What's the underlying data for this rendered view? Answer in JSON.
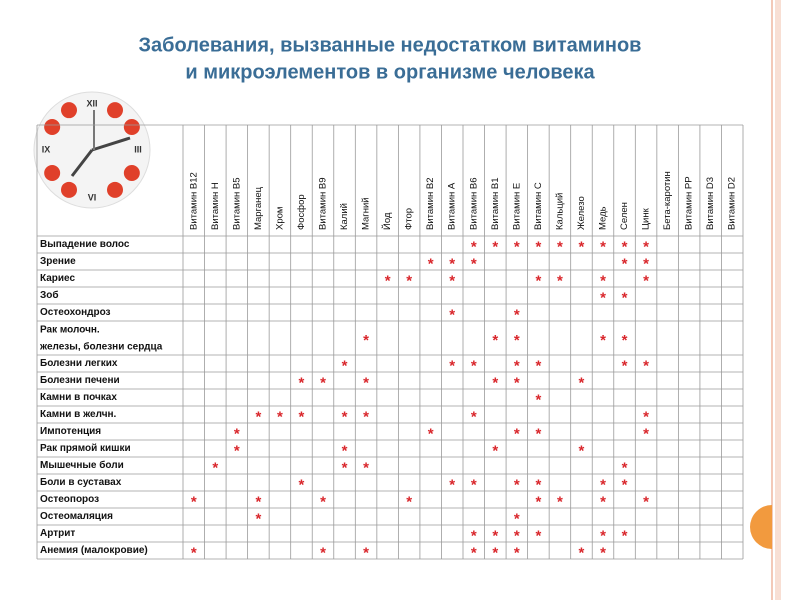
{
  "header": {
    "title_line1": "Заболевания, вызванные недостатком витаминов",
    "title_line2": "и микроэлементов в организме человека"
  },
  "clock": {
    "numerals": [
      "XII",
      "III",
      "VI",
      "IX"
    ]
  },
  "table": {
    "columns": [
      "Витамин В12",
      "Витамин Н",
      "Витамин В5",
      "Марганец",
      "Хром",
      "Фосфор",
      "Витамин В9",
      "Калий",
      "Магний",
      "Йод",
      "Фтор",
      "Витамин В2",
      "Витамин А",
      "Витамин В6",
      "Витамин В1",
      "Витамин Е",
      "Витамин С",
      "Кальций",
      "Железо",
      "Медь",
      "Селен",
      "Цинк",
      "Бета-каротин",
      "Витамин РР",
      "Витамин D3",
      "Витамин D2"
    ],
    "rows": [
      {
        "label": "Выпадение волос",
        "cells": [
          null,
          null,
          null,
          null,
          null,
          null,
          null,
          null,
          null,
          null,
          null,
          null,
          null,
          "*",
          "*",
          "*",
          "*",
          "*",
          "*",
          "*",
          "*",
          "*",
          null,
          null,
          null,
          null
        ]
      },
      {
        "label": "Зрение",
        "cells": [
          null,
          null,
          null,
          null,
          null,
          null,
          null,
          null,
          null,
          null,
          null,
          "*",
          "*",
          "*",
          null,
          null,
          null,
          null,
          null,
          null,
          "*",
          "*",
          null,
          null,
          null,
          null
        ]
      },
      {
        "label": "Кариес",
        "cells": [
          null,
          null,
          null,
          null,
          null,
          null,
          null,
          null,
          null,
          "*",
          "*",
          null,
          "*",
          null,
          null,
          null,
          "*",
          "*",
          null,
          "*",
          null,
          "*",
          null,
          null,
          null,
          null
        ]
      },
      {
        "label": "Зоб",
        "cells": [
          null,
          null,
          null,
          null,
          null,
          null,
          null,
          null,
          null,
          null,
          null,
          null,
          null,
          null,
          null,
          null,
          null,
          null,
          null,
          "*",
          "*",
          null,
          null,
          null,
          null,
          null
        ]
      },
      {
        "label": "Остеохондроз",
        "cells": [
          null,
          null,
          null,
          null,
          null,
          null,
          null,
          null,
          null,
          null,
          null,
          null,
          "*",
          null,
          null,
          "*",
          null,
          null,
          null,
          null,
          null,
          null,
          null,
          null,
          null,
          null
        ]
      },
      {
        "label": "Рак молочн. железы, болезни сердца",
        "cells": [
          null,
          null,
          null,
          null,
          null,
          null,
          null,
          null,
          "*",
          null,
          null,
          null,
          null,
          null,
          "*",
          "*",
          null,
          null,
          null,
          "*",
          "*",
          null,
          null,
          null,
          null,
          null
        ]
      },
      {
        "label": "Болезни легких",
        "cells": [
          null,
          null,
          null,
          null,
          null,
          null,
          null,
          "*",
          null,
          null,
          null,
          null,
          "*",
          "*",
          null,
          "*",
          "*",
          null,
          null,
          null,
          "*",
          "*",
          null,
          null,
          null,
          null
        ]
      },
      {
        "label": "Болезни печени",
        "cells": [
          null,
          null,
          null,
          null,
          null,
          "*",
          "*",
          null,
          "*",
          null,
          null,
          null,
          null,
          null,
          "*",
          "*",
          null,
          null,
          "*",
          null,
          null,
          null,
          null,
          null,
          null,
          null
        ]
      },
      {
        "label": "Камни в почках",
        "cells": [
          null,
          null,
          null,
          null,
          null,
          null,
          null,
          null,
          null,
          null,
          null,
          null,
          null,
          null,
          null,
          null,
          "*",
          null,
          null,
          null,
          null,
          null,
          null,
          null,
          null,
          null
        ]
      },
      {
        "label": "Камни в желчн.",
        "cells": [
          null,
          null,
          null,
          "*",
          "*",
          "*",
          null,
          "*",
          "*",
          null,
          null,
          null,
          null,
          "*",
          null,
          null,
          null,
          null,
          null,
          null,
          null,
          "*",
          null,
          null,
          null,
          null
        ]
      },
      {
        "label": "Импотенция",
        "cells": [
          null,
          null,
          "*",
          null,
          null,
          null,
          null,
          null,
          null,
          null,
          null,
          "*",
          null,
          null,
          null,
          "*",
          "*",
          null,
          null,
          null,
          null,
          "*",
          null,
          null,
          null,
          null
        ]
      },
      {
        "label": "Рак прямой кишки",
        "cells": [
          null,
          null,
          "*",
          null,
          null,
          null,
          null,
          "*",
          null,
          null,
          null,
          null,
          null,
          null,
          "*",
          null,
          null,
          null,
          "*",
          null,
          null,
          null,
          null,
          null,
          null,
          null
        ]
      },
      {
        "label": "Мышечные боли",
        "cells": [
          null,
          "*",
          null,
          null,
          null,
          null,
          null,
          "*",
          "*",
          null,
          null,
          null,
          null,
          null,
          null,
          null,
          null,
          null,
          null,
          null,
          "*",
          null,
          null,
          null,
          null,
          null
        ]
      },
      {
        "label": "Боли в суставах",
        "cells": [
          null,
          null,
          null,
          null,
          null,
          "*",
          null,
          null,
          null,
          null,
          null,
          null,
          "*",
          "*",
          null,
          "*",
          "*",
          null,
          null,
          "*",
          "*",
          null,
          null,
          null,
          null,
          null
        ]
      },
      {
        "label": "Остеопороз",
        "cells": [
          "*",
          null,
          null,
          "*",
          null,
          null,
          "*",
          null,
          null,
          null,
          "*",
          null,
          null,
          null,
          null,
          null,
          "*",
          "*",
          null,
          "*",
          null,
          "*",
          null,
          null,
          null,
          null
        ]
      },
      {
        "label": "Остеомаляция",
        "cells": [
          null,
          null,
          null,
          "*",
          null,
          null,
          null,
          null,
          null,
          null,
          null,
          null,
          null,
          null,
          null,
          "*",
          null,
          null,
          null,
          null,
          null,
          null,
          null,
          null,
          null,
          null
        ]
      },
      {
        "label": "Артрит",
        "cells": [
          null,
          null,
          null,
          null,
          null,
          null,
          null,
          null,
          null,
          null,
          null,
          null,
          null,
          "*",
          "*",
          "*",
          "*",
          null,
          null,
          "*",
          "*",
          null,
          null,
          null,
          null,
          null
        ]
      },
      {
        "label": "Анемия (малокровие)",
        "cells": [
          "*",
          null,
          null,
          null,
          null,
          null,
          "*",
          null,
          "*",
          null,
          null,
          null,
          null,
          "*",
          "*",
          "*",
          null,
          null,
          "*",
          "*",
          null,
          null,
          null,
          null,
          null,
          null
        ]
      }
    ]
  }
}
